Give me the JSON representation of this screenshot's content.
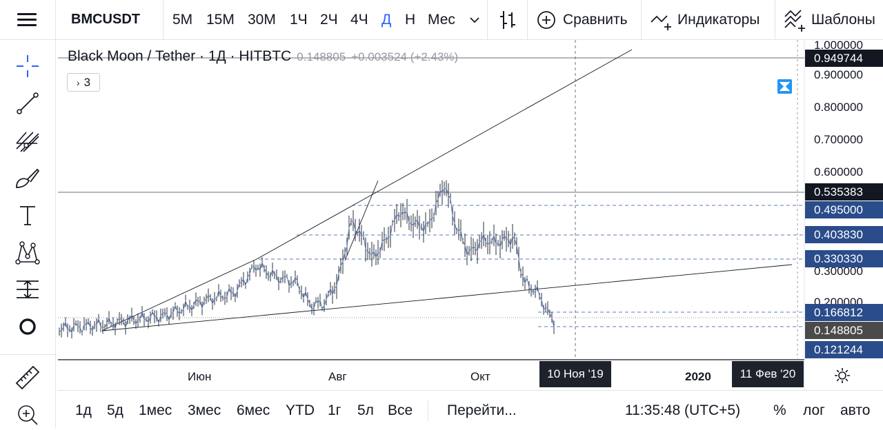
{
  "toolbar": {
    "symbol": "BMCUSDT",
    "intervals": [
      "5М",
      "15М",
      "30М",
      "1Ч",
      "2Ч",
      "4Ч",
      "Д",
      "Н",
      "Мес"
    ],
    "active_interval": "Д",
    "compare_label": "Сравнить",
    "indicators_label": "Индикаторы",
    "templates_label": "Шаблоны"
  },
  "left_tools": [
    "crosshair-icon",
    "trend-line-icon",
    "pitchfork-icon",
    "brush-icon",
    "text-icon",
    "pattern-icon",
    "measure-icon",
    "circle-icon",
    "ruler-icon",
    "zoom-in-icon"
  ],
  "legend": {
    "title": "Black Moon / Tether · 1Д · HITBTC",
    "price": "0.148805",
    "change": "+0.003524 (+2.43%)",
    "indicators_count": "3"
  },
  "price_axis": {
    "ticks": [
      "1.000000",
      "0.900000",
      "0.800000",
      "0.700000",
      "0.600000",
      "0.300000",
      "0.200000"
    ],
    "labels": [
      {
        "value": "0.949744",
        "color": "#131722"
      },
      {
        "value": "0.535383",
        "color": "#131722"
      },
      {
        "value": "0.495000",
        "color": "#2a4c8a"
      },
      {
        "value": "0.403830",
        "color": "#2a4c8a"
      },
      {
        "value": "0.330330",
        "color": "#2a4c8a"
      },
      {
        "value": "0.166812",
        "color": "#2a4c8a"
      },
      {
        "value": "0.148805",
        "color": "#4a4a4a"
      },
      {
        "value": "0.121244",
        "color": "#2a4c8a"
      }
    ]
  },
  "time_axis": {
    "ticks": [
      "Июн",
      "Авг",
      "Окт"
    ],
    "year_label": "2020",
    "crosshair_date": "10 Ноя '19",
    "range_end_date": "11 Фев '20"
  },
  "bottom_bar": {
    "ranges": [
      "1д",
      "5д",
      "1мес",
      "3мес",
      "6мес",
      "YTD",
      "1г",
      "5л",
      "Все"
    ],
    "goto_label": "Перейти...",
    "time": "11:35:48 (UTC+5)",
    "percent_label": "%",
    "log_label": "лог",
    "auto_label": "авто"
  },
  "colors": {
    "accent": "#2962ff",
    "price_box_blue": "#2a4c8a",
    "dark_box": "#131722"
  }
}
